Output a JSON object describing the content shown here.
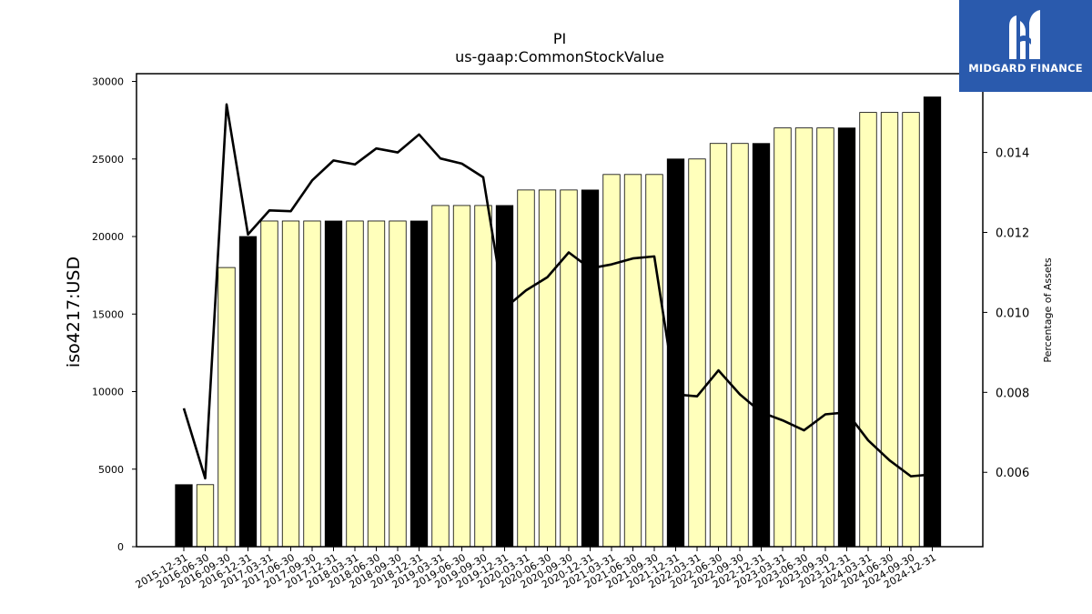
{
  "brand": {
    "name": "MIDGARD FINANCE",
    "icon": "midgard-logo-icon",
    "background": "#2a5aad"
  },
  "chart_data": {
    "type": "bar",
    "title": "PI",
    "subtitle": "us-gaap:CommonStockValue",
    "ylabel": "iso4217:USD",
    "y2label": "Percentage of Assets",
    "ylim": [
      0,
      30500
    ],
    "y2lim": [
      0.00414,
      0.01597
    ],
    "yticks": [
      0,
      5000,
      10000,
      15000,
      20000,
      25000,
      30000
    ],
    "y2ticks": [
      "0.006",
      "0.008",
      "0.010",
      "0.012",
      "0.014"
    ],
    "grid": false,
    "categories": [
      "2015-12-31",
      "2016-06-30",
      "2016-09-30",
      "2016-12-31",
      "2017-03-31",
      "2017-06-30",
      "2017-09-30",
      "2017-12-31",
      "2018-03-31",
      "2018-06-30",
      "2018-09-30",
      "2018-12-31",
      "2019-03-31",
      "2019-06-30",
      "2019-09-30",
      "2019-12-31",
      "2020-03-31",
      "2020-06-30",
      "2020-09-30",
      "2020-12-31",
      "2021-03-31",
      "2021-06-30",
      "2021-09-30",
      "2021-12-31",
      "2022-03-31",
      "2022-06-30",
      "2022-09-30",
      "2022-12-31",
      "2023-03-31",
      "2023-06-30",
      "2023-09-30",
      "2023-12-31",
      "2024-03-31",
      "2024-06-30",
      "2024-09-30",
      "2024-12-31"
    ],
    "values": [
      4000,
      4000,
      18000,
      20000,
      21000,
      21000,
      21000,
      21000,
      21000,
      21000,
      21000,
      21000,
      22000,
      22000,
      22000,
      22000,
      23000,
      23000,
      23000,
      23000,
      24000,
      24000,
      24000,
      25000,
      25000,
      26000,
      26000,
      26000,
      27000,
      27000,
      27000,
      27000,
      28000,
      28000,
      28000,
      29000
    ],
    "year_end": [
      true,
      false,
      false,
      true,
      false,
      false,
      false,
      true,
      false,
      false,
      false,
      true,
      false,
      false,
      false,
      true,
      false,
      false,
      false,
      true,
      false,
      false,
      false,
      true,
      false,
      false,
      false,
      true,
      false,
      false,
      false,
      true,
      false,
      false,
      false,
      true
    ],
    "pct_assets": [
      0.0076,
      0.00585,
      0.0152,
      0.01195,
      0.01255,
      0.01253,
      0.0133,
      0.0138,
      0.0137,
      0.0141,
      0.014,
      0.01445,
      0.01385,
      0.01372,
      0.01338,
      0.0101,
      0.01055,
      0.01088,
      0.0115,
      0.0111,
      0.0112,
      0.01135,
      0.0114,
      0.00795,
      0.0079,
      0.00855,
      0.00795,
      0.0075,
      0.0073,
      0.00705,
      0.00745,
      0.0075,
      0.0068,
      0.0063,
      0.0059,
      0.00595
    ],
    "colors": {
      "quarter_bar": "#ffffbb",
      "year_bar": "#000000",
      "line": "#000000"
    }
  }
}
